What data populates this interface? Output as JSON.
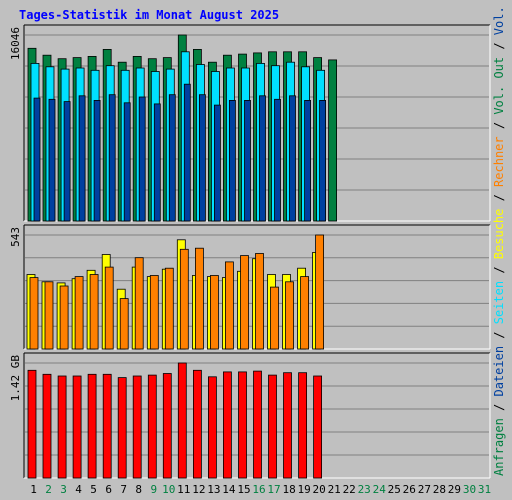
{
  "chart_data": {
    "type": "bar",
    "title": "Tages-Statistik im Monat August 2025",
    "categories": [
      "1",
      "2",
      "3",
      "4",
      "5",
      "6",
      "7",
      "8",
      "9",
      "10",
      "11",
      "12",
      "13",
      "14",
      "15",
      "16",
      "17",
      "18",
      "19",
      "20",
      "21",
      "22",
      "23",
      "24",
      "25",
      "26",
      "27",
      "28",
      "29",
      "30",
      "31"
    ],
    "weekend_days": [
      "2",
      "3",
      "9",
      "10",
      "16",
      "17",
      "23",
      "24",
      "30",
      "31"
    ],
    "panels": [
      {
        "name": "requests",
        "ymax_label": "16046",
        "ymax": 16046,
        "series": [
          {
            "name": "Anfragen",
            "color": "#008040",
            "values": [
              14900,
              14300,
              14000,
              14100,
              14200,
              14800,
              13700,
              14200,
              14000,
              14100,
              16046,
              14800,
              13700,
              14300,
              14400,
              14500,
              14600,
              14600,
              14600,
              14100,
              13900,
              null,
              null,
              null,
              null,
              null,
              null,
              null,
              null,
              null,
              null
            ]
          },
          {
            "name": "Seiten",
            "color": "#00e0ff",
            "values": [
              13600,
              13300,
              13100,
              13200,
              13000,
              13400,
              13000,
              13200,
              12900,
              13100,
              14600,
              13500,
              12900,
              13200,
              13200,
              13600,
              13400,
              13700,
              13300,
              13000,
              null,
              null,
              null,
              null,
              null,
              null,
              null,
              null,
              null,
              null,
              null
            ]
          },
          {
            "name": "Dateien",
            "color": "#0040a0",
            "values": [
              10600,
              10500,
              10300,
              10800,
              10400,
              10900,
              10200,
              10700,
              10100,
              10900,
              11800,
              10900,
              10000,
              10400,
              10400,
              10800,
              10500,
              10800,
              10400,
              10400,
              null,
              null,
              null,
              null,
              null,
              null,
              null,
              null,
              null,
              null,
              null
            ]
          }
        ]
      },
      {
        "name": "visits",
        "ymax_label": "543",
        "ymax": 543,
        "series": [
          {
            "name": "Besuche",
            "color": "#ffff00",
            "values": [
              355,
              320,
              315,
              335,
              375,
              450,
              285,
              390,
              345,
              380,
              520,
              350,
              345,
              340,
              370,
              430,
              355,
              355,
              385,
              460,
              null,
              null,
              null,
              null,
              null,
              null,
              null,
              null,
              null,
              null,
              null
            ]
          },
          {
            "name": "Rechner",
            "color": "#ff8000",
            "values": [
              340,
              320,
              300,
              345,
              355,
              390,
              240,
              435,
              350,
              385,
              475,
              480,
              350,
              415,
              445,
              455,
              295,
              320,
              345,
              543,
              null,
              null,
              null,
              null,
              null,
              null,
              null,
              null,
              null,
              null,
              null
            ]
          }
        ]
      },
      {
        "name": "volume",
        "ymax_label": "1.42 GB",
        "ymax": 1.42,
        "series": [
          {
            "name": "Volumen",
            "color": "#ff0000",
            "values": [
              1.33,
              1.28,
              1.26,
              1.26,
              1.28,
              1.28,
              1.24,
              1.26,
              1.27,
              1.29,
              1.42,
              1.33,
              1.25,
              1.31,
              1.31,
              1.32,
              1.27,
              1.3,
              1.3,
              1.26,
              null,
              null,
              null,
              null,
              null,
              null,
              null,
              null,
              null,
              null,
              null
            ]
          }
        ]
      }
    ],
    "right_legend": [
      {
        "text": "Anfragen",
        "color": "#008040"
      },
      {
        "text": " / ",
        "color": "#000000"
      },
      {
        "text": "Dateien",
        "color": "#0040a0"
      },
      {
        "text": " / ",
        "color": "#000000"
      },
      {
        "text": "Seiten",
        "color": "#00e0ff"
      },
      {
        "text": " / ",
        "color": "#000000"
      },
      {
        "text": "Besuche",
        "color": "#ffff00"
      },
      {
        "text": " / ",
        "color": "#000000"
      },
      {
        "text": "Rechner",
        "color": "#ff8000"
      },
      {
        "text": " / ",
        "color": "#000000"
      },
      {
        "text": "Vol. Out",
        "color": "#008040"
      },
      {
        "text": " / ",
        "color": "#000000"
      },
      {
        "text": "Vol. In",
        "color": "#0040a0"
      },
      {
        "text": " / ",
        "color": "#000000"
      },
      {
        "text": "Volumen",
        "color": "#ff0000"
      }
    ],
    "colors": {
      "background": "#c0c0c0",
      "grid": "#808080",
      "title": "#0000ff",
      "weekday_label": "#000000",
      "weekend_label": "#008040"
    }
  }
}
